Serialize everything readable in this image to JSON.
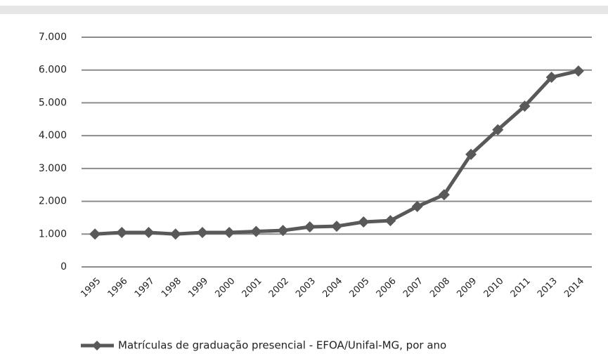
{
  "chart_data": {
    "type": "line",
    "categories": [
      "1995",
      "1996",
      "1997",
      "1998",
      "1999",
      "2000",
      "2001",
      "2002",
      "2003",
      "2004",
      "2005",
      "2006",
      "2007",
      "2008",
      "2009",
      "2010",
      "2011",
      "2013",
      "2014"
    ],
    "series": [
      {
        "name": "Matrículas de graduação presencial - EFOA/Unifal-MG,  por ano",
        "color": "#595959",
        "values": [
          1000,
          1050,
          1050,
          1000,
          1050,
          1050,
          1080,
          1110,
          1220,
          1240,
          1370,
          1410,
          1840,
          2200,
          3430,
          4180,
          4900,
          5780,
          5970
        ]
      }
    ],
    "ylim": [
      0,
      7000
    ],
    "yticks": [
      0,
      {
        "value": 1000,
        "label": "1.000"
      },
      {
        "value": 2000,
        "label": "2.000"
      },
      {
        "value": 3000,
        "label": "3.000"
      },
      {
        "value": 4000,
        "label": "4.000"
      },
      {
        "value": 5000,
        "label": "5.000"
      },
      {
        "value": 6000,
        "label": "6.000"
      },
      {
        "value": 7000,
        "label": "7.000"
      }
    ],
    "grid": true,
    "legend": "bottom"
  }
}
